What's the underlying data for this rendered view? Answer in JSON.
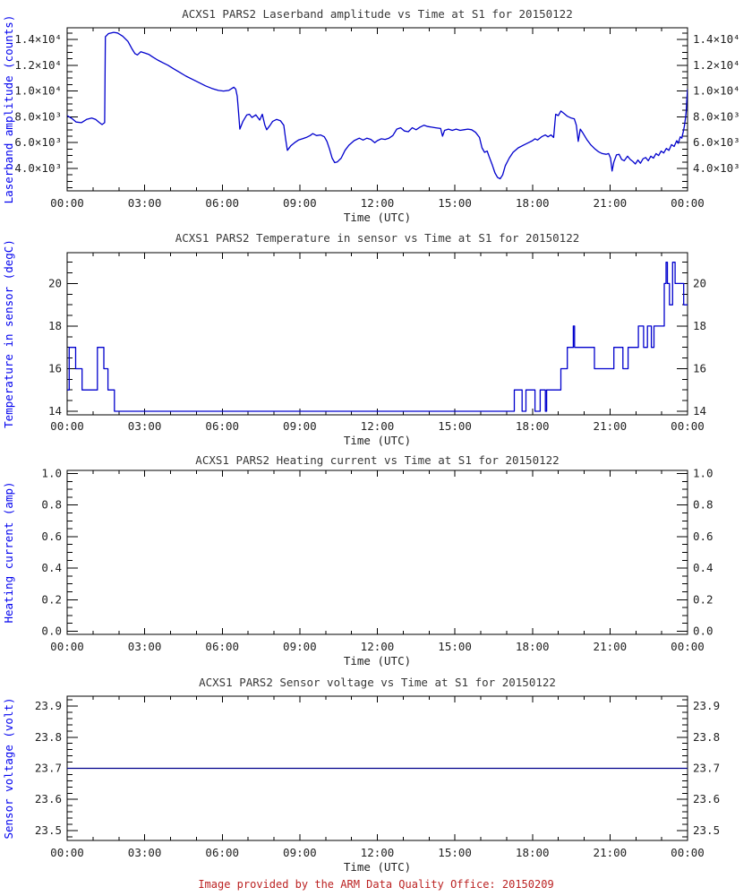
{
  "page": {
    "footer": "Image provided by the ARM Data Quality Office: 20150209"
  },
  "colors": {
    "data_line": "#0000cd",
    "voltage_line": "#00008b",
    "axis": "#000000",
    "tick_label": "#222222",
    "y_axis_label": "#0000ee",
    "title": "#383838",
    "footer": "#bb2222",
    "background": "#ffffff"
  },
  "chart_data": [
    {
      "type": "line",
      "title": "ACXS1 PARS2 Laserband amplitude vs Time at S1 for 20150122",
      "ylabel": "Laserband amplitude (counts)",
      "xlabel": "Time (UTC)",
      "xlim": [
        0,
        24
      ],
      "xticks": {
        "hours": [
          0,
          3,
          6,
          9,
          12,
          15,
          18,
          21,
          24
        ],
        "labels": [
          "00:00",
          "03:00",
          "06:00",
          "09:00",
          "12:00",
          "15:00",
          "18:00",
          "21:00",
          "00:00"
        ]
      },
      "xminor_hours": 1,
      "ylim": [
        2264,
        14903
      ],
      "yticks": {
        "values": [
          4000,
          6000,
          8000,
          10000,
          12000,
          14000
        ],
        "labels": [
          "4.0×10³",
          "6.0×10³",
          "8.0×10³",
          "1.0×10⁴",
          "1.2×10⁴",
          "1.4×10⁴"
        ]
      },
      "yminor": 500,
      "line_color": "#0000cd",
      "grid": false,
      "legend": null,
      "points": [
        [
          0,
          8100
        ],
        [
          0.2,
          7850
        ],
        [
          0.35,
          7600
        ],
        [
          0.55,
          7550
        ],
        [
          0.75,
          7800
        ],
        [
          0.95,
          7900
        ],
        [
          1.1,
          7800
        ],
        [
          1.25,
          7550
        ],
        [
          1.35,
          7400
        ],
        [
          1.45,
          7550
        ],
        [
          1.48,
          14200
        ],
        [
          1.6,
          14450
        ],
        [
          1.8,
          14550
        ],
        [
          1.95,
          14500
        ],
        [
          2.15,
          14250
        ],
        [
          2.35,
          13850
        ],
        [
          2.5,
          13300
        ],
        [
          2.62,
          12900
        ],
        [
          2.72,
          12800
        ],
        [
          2.85,
          13050
        ],
        [
          3.0,
          12950
        ],
        [
          3.15,
          12850
        ],
        [
          3.3,
          12650
        ],
        [
          3.5,
          12400
        ],
        [
          3.7,
          12200
        ],
        [
          3.9,
          12000
        ],
        [
          4.1,
          11750
        ],
        [
          4.35,
          11450
        ],
        [
          4.6,
          11150
        ],
        [
          4.85,
          10900
        ],
        [
          5.1,
          10650
        ],
        [
          5.35,
          10400
        ],
        [
          5.6,
          10200
        ],
        [
          5.85,
          10050
        ],
        [
          6.05,
          10000
        ],
        [
          6.25,
          10050
        ],
        [
          6.45,
          10300
        ],
        [
          6.52,
          10150
        ],
        [
          6.58,
          9600
        ],
        [
          6.63,
          8400
        ],
        [
          6.68,
          7050
        ],
        [
          6.8,
          7650
        ],
        [
          6.95,
          8150
        ],
        [
          7.05,
          8200
        ],
        [
          7.15,
          7950
        ],
        [
          7.3,
          8150
        ],
        [
          7.45,
          7750
        ],
        [
          7.55,
          8200
        ],
        [
          7.65,
          7350
        ],
        [
          7.72,
          7000
        ],
        [
          7.85,
          7350
        ],
        [
          7.95,
          7650
        ],
        [
          8.1,
          7800
        ],
        [
          8.25,
          7700
        ],
        [
          8.38,
          7350
        ],
        [
          8.45,
          6300
        ],
        [
          8.52,
          5400
        ],
        [
          8.65,
          5750
        ],
        [
          8.8,
          6000
        ],
        [
          8.95,
          6200
        ],
        [
          9.1,
          6300
        ],
        [
          9.25,
          6400
        ],
        [
          9.4,
          6550
        ],
        [
          9.5,
          6700
        ],
        [
          9.65,
          6550
        ],
        [
          9.8,
          6600
        ],
        [
          9.95,
          6450
        ],
        [
          10.05,
          6100
        ],
        [
          10.15,
          5500
        ],
        [
          10.25,
          4800
        ],
        [
          10.35,
          4450
        ],
        [
          10.45,
          4500
        ],
        [
          10.6,
          4800
        ],
        [
          10.75,
          5400
        ],
        [
          10.9,
          5800
        ],
        [
          11.1,
          6150
        ],
        [
          11.3,
          6350
        ],
        [
          11.45,
          6200
        ],
        [
          11.6,
          6350
        ],
        [
          11.75,
          6250
        ],
        [
          11.9,
          6000
        ],
        [
          12.0,
          6150
        ],
        [
          12.15,
          6300
        ],
        [
          12.3,
          6250
        ],
        [
          12.45,
          6350
        ],
        [
          12.6,
          6550
        ],
        [
          12.75,
          7050
        ],
        [
          12.9,
          7150
        ],
        [
          13.05,
          6900
        ],
        [
          13.2,
          6850
        ],
        [
          13.35,
          7150
        ],
        [
          13.5,
          7000
        ],
        [
          13.65,
          7200
        ],
        [
          13.8,
          7350
        ],
        [
          13.95,
          7250
        ],
        [
          14.1,
          7200
        ],
        [
          14.25,
          7150
        ],
        [
          14.45,
          7100
        ],
        [
          14.52,
          6500
        ],
        [
          14.6,
          6950
        ],
        [
          14.75,
          7050
        ],
        [
          14.9,
          6950
        ],
        [
          15.05,
          7050
        ],
        [
          15.2,
          6950
        ],
        [
          15.35,
          7000
        ],
        [
          15.5,
          7050
        ],
        [
          15.65,
          7000
        ],
        [
          15.8,
          6800
        ],
        [
          15.95,
          6400
        ],
        [
          16.05,
          5600
        ],
        [
          16.15,
          5250
        ],
        [
          16.25,
          5350
        ],
        [
          16.32,
          4950
        ],
        [
          16.45,
          4250
        ],
        [
          16.55,
          3650
        ],
        [
          16.65,
          3300
        ],
        [
          16.75,
          3200
        ],
        [
          16.85,
          3500
        ],
        [
          16.95,
          4200
        ],
        [
          17.1,
          4800
        ],
        [
          17.25,
          5250
        ],
        [
          17.45,
          5600
        ],
        [
          17.65,
          5800
        ],
        [
          17.85,
          6000
        ],
        [
          18.0,
          6150
        ],
        [
          18.1,
          6300
        ],
        [
          18.2,
          6200
        ],
        [
          18.35,
          6450
        ],
        [
          18.5,
          6600
        ],
        [
          18.6,
          6450
        ],
        [
          18.72,
          6600
        ],
        [
          18.82,
          6400
        ],
        [
          18.9,
          8200
        ],
        [
          19.0,
          8100
        ],
        [
          19.1,
          8450
        ],
        [
          19.2,
          8300
        ],
        [
          19.35,
          8050
        ],
        [
          19.5,
          7900
        ],
        [
          19.62,
          7850
        ],
        [
          19.7,
          7350
        ],
        [
          19.77,
          6100
        ],
        [
          19.85,
          7050
        ],
        [
          19.95,
          6750
        ],
        [
          20.1,
          6250
        ],
        [
          20.25,
          5850
        ],
        [
          20.4,
          5550
        ],
        [
          20.55,
          5300
        ],
        [
          20.7,
          5150
        ],
        [
          20.85,
          5100
        ],
        [
          20.95,
          5150
        ],
        [
          21.02,
          4800
        ],
        [
          21.08,
          3800
        ],
        [
          21.15,
          4500
        ],
        [
          21.25,
          5050
        ],
        [
          21.35,
          5100
        ],
        [
          21.45,
          4700
        ],
        [
          21.55,
          4600
        ],
        [
          21.68,
          4950
        ],
        [
          21.78,
          4700
        ],
        [
          21.88,
          4550
        ],
        [
          21.98,
          4350
        ],
        [
          22.08,
          4650
        ],
        [
          22.18,
          4400
        ],
        [
          22.28,
          4750
        ],
        [
          22.38,
          4850
        ],
        [
          22.48,
          4600
        ],
        [
          22.58,
          4950
        ],
        [
          22.68,
          4800
        ],
        [
          22.78,
          5150
        ],
        [
          22.88,
          5000
        ],
        [
          22.98,
          5350
        ],
        [
          23.08,
          5200
        ],
        [
          23.18,
          5550
        ],
        [
          23.28,
          5400
        ],
        [
          23.38,
          5850
        ],
        [
          23.48,
          5700
        ],
        [
          23.58,
          6150
        ],
        [
          23.64,
          5950
        ],
        [
          23.72,
          6450
        ],
        [
          23.78,
          6350
        ],
        [
          23.84,
          6900
        ],
        [
          23.88,
          7300
        ],
        [
          23.92,
          7900
        ],
        [
          23.95,
          8500
        ],
        [
          23.97,
          9200
        ],
        [
          24,
          10150
        ]
      ]
    },
    {
      "type": "step",
      "title": "ACXS1 PARS2 Temperature in sensor vs Time at S1 for 20150122",
      "ylabel": "Temperature in sensor (degC)",
      "xlabel": "Time (UTC)",
      "xlim": [
        0,
        24
      ],
      "xticks": {
        "hours": [
          0,
          3,
          6,
          9,
          12,
          15,
          18,
          21,
          24
        ],
        "labels": [
          "00:00",
          "03:00",
          "06:00",
          "09:00",
          "12:00",
          "15:00",
          "18:00",
          "21:00",
          "00:00"
        ]
      },
      "xminor_hours": 1,
      "ylim": [
        13.83,
        21.45
      ],
      "yticks": {
        "values": [
          14,
          16,
          18,
          20
        ],
        "labels": [
          "14",
          "16",
          "18",
          "20"
        ]
      },
      "yminor": 0.5,
      "line_color": "#0000cd",
      "grid": false,
      "legend": null,
      "segments": [
        [
          0.0,
          0.08,
          15
        ],
        [
          0.08,
          0.33,
          17
        ],
        [
          0.33,
          0.58,
          16
        ],
        [
          0.58,
          1.17,
          15
        ],
        [
          1.17,
          1.42,
          17
        ],
        [
          1.42,
          1.58,
          16
        ],
        [
          1.58,
          1.83,
          15
        ],
        [
          1.83,
          17.3,
          14
        ],
        [
          17.3,
          17.6,
          15
        ],
        [
          17.6,
          17.75,
          14
        ],
        [
          17.75,
          18.1,
          15
        ],
        [
          18.1,
          18.3,
          14
        ],
        [
          18.3,
          18.5,
          15
        ],
        [
          18.5,
          18.55,
          14
        ],
        [
          18.55,
          19.1,
          15
        ],
        [
          19.1,
          19.35,
          16
        ],
        [
          19.35,
          19.58,
          17
        ],
        [
          19.58,
          19.63,
          18
        ],
        [
          19.63,
          20.4,
          17
        ],
        [
          20.4,
          21.15,
          16
        ],
        [
          21.15,
          21.5,
          17
        ],
        [
          21.5,
          21.7,
          16
        ],
        [
          21.7,
          22.1,
          17
        ],
        [
          22.1,
          22.3,
          18
        ],
        [
          22.3,
          22.45,
          17
        ],
        [
          22.45,
          22.6,
          18
        ],
        [
          22.6,
          22.7,
          17
        ],
        [
          22.7,
          23.1,
          18
        ],
        [
          23.1,
          23.17,
          20
        ],
        [
          23.17,
          23.22,
          21
        ],
        [
          23.22,
          23.3,
          20
        ],
        [
          23.3,
          23.42,
          19
        ],
        [
          23.42,
          23.52,
          21
        ],
        [
          23.52,
          23.85,
          20
        ],
        [
          23.85,
          24.0,
          19
        ]
      ]
    },
    {
      "type": "line",
      "title": "ACXS1 PARS2 Heating current vs Time at S1 for 20150122",
      "ylabel": "Heating current (amp)",
      "xlabel": "Time (UTC)",
      "xlim": [
        0,
        24
      ],
      "xticks": {
        "hours": [
          0,
          3,
          6,
          9,
          12,
          15,
          18,
          21,
          24
        ],
        "labels": [
          "00:00",
          "03:00",
          "06:00",
          "09:00",
          "12:00",
          "15:00",
          "18:00",
          "21:00",
          "00:00"
        ]
      },
      "xminor_hours": 1,
      "ylim": [
        -0.02,
        1.02
      ],
      "yticks": {
        "values": [
          0.0,
          0.2,
          0.4,
          0.6,
          0.8,
          1.0
        ],
        "labels": [
          "0.0",
          "0.2",
          "0.4",
          "0.6",
          "0.8",
          "1.0"
        ]
      },
      "yminor": 0.05,
      "line_color": "#0000cd",
      "grid": false,
      "legend": null,
      "points": []
    },
    {
      "type": "line",
      "title": "ACXS1 PARS2 Sensor voltage vs Time at S1 for 20150122",
      "ylabel": "Sensor voltage (volt)",
      "xlabel": "Time (UTC)",
      "xlim": [
        0,
        24
      ],
      "xticks": {
        "hours": [
          0,
          3,
          6,
          9,
          12,
          15,
          18,
          21,
          24
        ],
        "labels": [
          "00:00",
          "03:00",
          "06:00",
          "09:00",
          "12:00",
          "15:00",
          "18:00",
          "21:00",
          "00:00"
        ]
      },
      "xminor_hours": 1,
      "ylim": [
        23.468,
        23.932
      ],
      "yticks": {
        "values": [
          23.5,
          23.6,
          23.7,
          23.8,
          23.9
        ],
        "labels": [
          "23.5",
          "23.6",
          "23.7",
          "23.8",
          "23.9"
        ]
      },
      "yminor": 0.02,
      "line_color": "#00008b",
      "grid": false,
      "legend": null,
      "points": [
        [
          0,
          23.7
        ],
        [
          24,
          23.7
        ]
      ]
    }
  ]
}
